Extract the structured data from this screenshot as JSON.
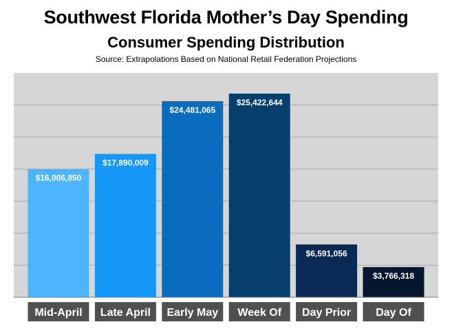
{
  "header": {
    "title": "Southwest Florida Mother’s Day Spending",
    "subtitle": "Consumer Spending Distribution",
    "source": "Source: Extrapolations Based on National Retail Federation Projections"
  },
  "colors": {
    "plot_background": "#d6d6d6",
    "gridline": "#a9a9a9",
    "category_box": "#505050",
    "bars": [
      "#4db4ff",
      "#1597f7",
      "#0a6cbf",
      "#063f6e",
      "#0a2a55",
      "#05162e"
    ]
  },
  "chart_data": {
    "type": "bar",
    "title": "Southwest Florida Mother’s Day Spending",
    "subtitle": "Consumer Spending Distribution",
    "categories": [
      "Mid-April",
      "Late April",
      "Early May",
      "Week Of",
      "Day Prior",
      "Day Of"
    ],
    "values": [
      16006850,
      17890009,
      24481065,
      25422644,
      6591056,
      3766318
    ],
    "data_labels": [
      "$16,006,850",
      "$17,890,009",
      "$24,481,065",
      "$25,422,644",
      "$6,591,056",
      "$3,766,318"
    ],
    "ylim": [
      0,
      28000000
    ],
    "grid": true,
    "legend": "none"
  }
}
